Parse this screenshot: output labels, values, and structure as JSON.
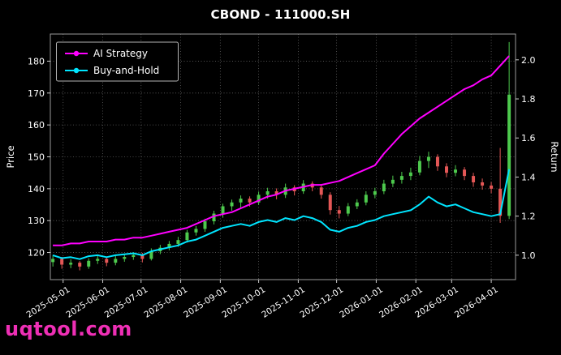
{
  "watermark": "uqtool.com",
  "colors": {
    "background": "#000000",
    "text": "#ffffff",
    "grid": "#5f5f5f",
    "spine": "#9a9a9a",
    "ai_strategy": "#ff00ff",
    "buy_and_hold": "#00e5ff",
    "candle_up": "#4dc94d",
    "candle_down": "#e45756",
    "watermark": "#ee2fb5"
  },
  "chart_data": {
    "type": "candlestick+line",
    "title": "CBOND - 111000.SH",
    "ylabel_left": "Price",
    "ylabel_right": "Return",
    "legend_position": "upper-left",
    "grid": "dotted",
    "price_axis": {
      "min": 111.5,
      "max": 188.5,
      "tick_values": [
        120,
        130,
        140,
        150,
        160,
        170,
        180
      ],
      "tick_labels": [
        "120",
        "130",
        "140",
        "150",
        "160",
        "170",
        "180"
      ]
    },
    "return_axis": {
      "min": 0.875,
      "max": 2.132,
      "tick_values": [
        1.0,
        1.2,
        1.4,
        1.6,
        1.8,
        2.0
      ],
      "tick_labels": [
        "1.0",
        "1.2",
        "1.4",
        "1.6",
        "1.8",
        "2.0"
      ]
    },
    "x_days_total": 364,
    "x_ticks": [
      {
        "day": 10,
        "label": "2025-05-01"
      },
      {
        "day": 41,
        "label": "2025-06-01"
      },
      {
        "day": 71,
        "label": "2025-07-01"
      },
      {
        "day": 102,
        "label": "2025-08-01"
      },
      {
        "day": 133,
        "label": "2025-09-01"
      },
      {
        "day": 163,
        "label": "2025-10-01"
      },
      {
        "day": 194,
        "label": "2025-11-01"
      },
      {
        "day": 224,
        "label": "2025-12-01"
      },
      {
        "day": 255,
        "label": "2026-01-01"
      },
      {
        "day": 286,
        "label": "2026-02-01"
      },
      {
        "day": 314,
        "label": "2026-03-01"
      },
      {
        "day": 345,
        "label": "2026-04-01"
      }
    ],
    "sample_day_start": 2,
    "sample_day_step": 7,
    "series": [
      {
        "name": "AI Strategy",
        "color": "#ff00ff",
        "axis": "return",
        "values": [
          1.05,
          1.05,
          1.06,
          1.06,
          1.07,
          1.07,
          1.07,
          1.08,
          1.08,
          1.09,
          1.09,
          1.1,
          1.11,
          1.12,
          1.13,
          1.14,
          1.16,
          1.18,
          1.2,
          1.21,
          1.22,
          1.24,
          1.26,
          1.28,
          1.3,
          1.31,
          1.33,
          1.34,
          1.35,
          1.36,
          1.36,
          1.37,
          1.38,
          1.4,
          1.42,
          1.44,
          1.46,
          1.52,
          1.57,
          1.62,
          1.66,
          1.7,
          1.73,
          1.76,
          1.79,
          1.82,
          1.85,
          1.87,
          1.9,
          1.92,
          1.97,
          2.02
        ]
      },
      {
        "name": "Buy-and-Hold",
        "color": "#00e5ff",
        "axis": "return",
        "values": [
          1.0,
          0.985,
          0.99,
          0.98,
          0.995,
          1.0,
          0.99,
          1.0,
          1.005,
          1.01,
          1.0,
          1.02,
          1.03,
          1.04,
          1.05,
          1.07,
          1.08,
          1.1,
          1.12,
          1.14,
          1.15,
          1.16,
          1.15,
          1.17,
          1.18,
          1.17,
          1.19,
          1.18,
          1.2,
          1.19,
          1.17,
          1.13,
          1.12,
          1.14,
          1.15,
          1.17,
          1.18,
          1.2,
          1.21,
          1.22,
          1.23,
          1.26,
          1.3,
          1.27,
          1.25,
          1.26,
          1.24,
          1.22,
          1.21,
          1.2,
          1.21,
          1.44
        ]
      }
    ],
    "candles": {
      "axis": "price",
      "up_color": "#4dc94d",
      "down_color": "#e45756",
      "ohlc": [
        [
          117.0,
          119.2,
          115.6,
          118.0
        ],
        [
          118.0,
          118.6,
          114.9,
          116.2
        ],
        [
          116.2,
          117.9,
          115.1,
          116.8
        ],
        [
          116.8,
          117.3,
          114.4,
          115.6
        ],
        [
          115.6,
          118.2,
          114.9,
          117.4
        ],
        [
          117.4,
          119.1,
          116.4,
          118.0
        ],
        [
          118.0,
          118.7,
          115.7,
          116.8
        ],
        [
          116.8,
          118.9,
          116.0,
          118.0
        ],
        [
          118.0,
          119.6,
          117.1,
          118.6
        ],
        [
          118.6,
          120.1,
          117.7,
          119.2
        ],
        [
          119.2,
          119.9,
          116.9,
          118.0
        ],
        [
          118.0,
          121.3,
          117.5,
          120.4
        ],
        [
          120.4,
          122.4,
          119.5,
          121.5
        ],
        [
          121.5,
          123.6,
          120.7,
          122.7
        ],
        [
          122.7,
          124.9,
          121.8,
          123.9
        ],
        [
          123.9,
          127.1,
          123.1,
          126.3
        ],
        [
          126.3,
          128.3,
          125.3,
          127.4
        ],
        [
          127.4,
          130.6,
          126.5,
          129.8
        ],
        [
          129.8,
          133.1,
          128.8,
          132.2
        ],
        [
          132.2,
          135.3,
          130.9,
          134.5
        ],
        [
          134.5,
          136.6,
          133.1,
          135.7
        ],
        [
          135.7,
          137.9,
          133.9,
          136.9
        ],
        [
          136.9,
          137.6,
          134.4,
          135.7
        ],
        [
          135.7,
          139.1,
          134.9,
          138.1
        ],
        [
          138.1,
          140.3,
          136.9,
          139.2
        ],
        [
          139.2,
          140.1,
          136.7,
          138.1
        ],
        [
          138.1,
          141.6,
          137.1,
          140.4
        ],
        [
          140.4,
          141.1,
          137.9,
          139.2
        ],
        [
          139.2,
          142.7,
          138.4,
          141.6
        ],
        [
          141.6,
          142.3,
          139.2,
          140.4
        ],
        [
          140.4,
          141.1,
          136.9,
          138.1
        ],
        [
          138.1,
          138.9,
          131.9,
          133.3
        ],
        [
          133.3,
          134.6,
          130.7,
          132.2
        ],
        [
          132.2,
          135.5,
          131.4,
          134.5
        ],
        [
          134.5,
          136.7,
          133.6,
          135.7
        ],
        [
          135.7,
          139.2,
          134.8,
          138.1
        ],
        [
          138.1,
          140.3,
          137.0,
          139.2
        ],
        [
          139.2,
          142.8,
          138.3,
          141.6
        ],
        [
          141.6,
          144.1,
          140.5,
          142.8
        ],
        [
          142.8,
          145.3,
          141.6,
          144.0
        ],
        [
          144.0,
          146.6,
          142.7,
          145.1
        ],
        [
          145.1,
          150.3,
          144.2,
          148.7
        ],
        [
          148.7,
          151.6,
          146.5,
          150.0
        ],
        [
          150.0,
          150.8,
          145.6,
          147.0
        ],
        [
          147.0,
          148.0,
          143.6,
          145.0
        ],
        [
          145.0,
          147.4,
          143.9,
          146.0
        ],
        [
          146.0,
          146.8,
          142.7,
          144.0
        ],
        [
          144.0,
          145.0,
          140.6,
          142.0
        ],
        [
          142.0,
          143.2,
          139.7,
          141.0
        ],
        [
          141.0,
          142.1,
          138.6,
          140.0
        ],
        [
          140.0,
          152.8,
          129.3,
          131.5
        ],
        [
          131.5,
          186.0,
          130.5,
          169.5
        ]
      ]
    }
  }
}
